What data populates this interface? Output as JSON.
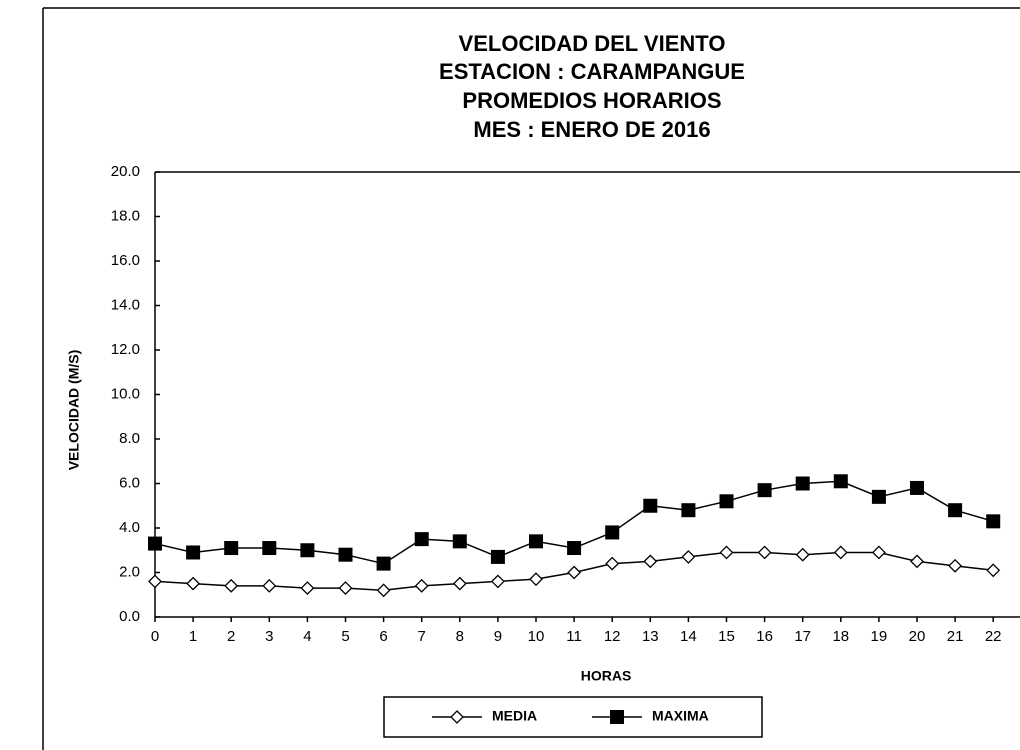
{
  "chart_data": {
    "type": "line",
    "title": [
      "VELOCIDAD  DEL VIENTO",
      "ESTACION : CARAMPANGUE",
      "PROMEDIOS  HORARIOS",
      "MES : ENERO  DE 2016"
    ],
    "y_label": "VELOCIDAD (M/S)",
    "x_label": "HORAS",
    "categories": [
      "0",
      "1",
      "2",
      "3",
      "4",
      "5",
      "6",
      "7",
      "8",
      "9",
      "10",
      "11",
      "12",
      "13",
      "14",
      "15",
      "16",
      "17",
      "18",
      "19",
      "20",
      "21",
      "22"
    ],
    "series": [
      {
        "name": "MEDIA",
        "color": "#000000",
        "marker": "diamond",
        "values": [
          1.6,
          1.5,
          1.4,
          1.4,
          1.3,
          1.3,
          1.2,
          1.4,
          1.5,
          1.6,
          1.7,
          2.0,
          2.4,
          2.5,
          2.7,
          2.9,
          2.9,
          2.8,
          2.9,
          2.9,
          2.5,
          2.3,
          2.1
        ]
      },
      {
        "name": "MAXIMA",
        "color": "#000000",
        "marker": "square",
        "values": [
          3.3,
          2.9,
          3.1,
          3.1,
          3.0,
          2.8,
          2.4,
          3.5,
          3.4,
          2.7,
          3.4,
          3.1,
          3.8,
          5.0,
          4.8,
          5.2,
          5.7,
          6.0,
          6.1,
          5.4,
          5.8,
          4.8,
          4.3
        ]
      }
    ],
    "ylim": [
      0,
      20
    ],
    "yticks": [
      {
        "value": 0,
        "label": "0.0"
      },
      {
        "value": 2,
        "label": "2.0"
      },
      {
        "value": 4,
        "label": "4.0"
      },
      {
        "value": 6,
        "label": "6.0"
      },
      {
        "value": 8,
        "label": "8.0"
      },
      {
        "value": 10,
        "label": "10.0"
      },
      {
        "value": 12,
        "label": "12.0"
      },
      {
        "value": 14,
        "label": "14.0"
      },
      {
        "value": 16,
        "label": "16.0"
      },
      {
        "value": 18,
        "label": "18.0"
      },
      {
        "value": 20,
        "label": "20.0"
      }
    ],
    "legend": "bottom"
  }
}
